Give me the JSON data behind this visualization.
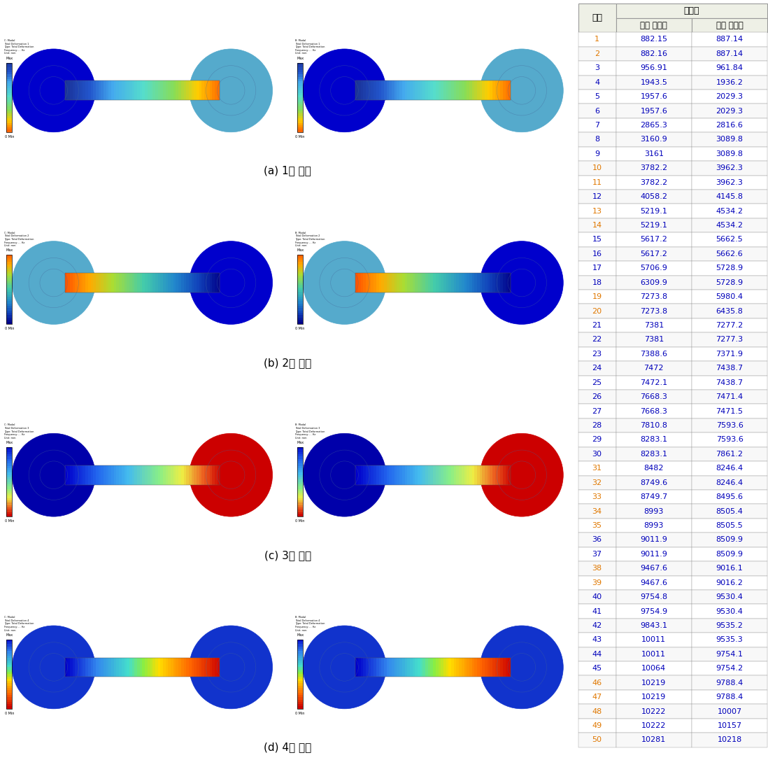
{
  "header_col0": "모드",
  "header_main": "주파수",
  "header_col1": "단일 확산부",
  "header_col2": "이중 확산부",
  "table_data": [
    [
      1,
      "882.15",
      "887.14"
    ],
    [
      2,
      "882.16",
      "887.14"
    ],
    [
      3,
      "956.91",
      "961.84"
    ],
    [
      4,
      "1943.5",
      "1936.2"
    ],
    [
      5,
      "1957.6",
      "2029.3"
    ],
    [
      6,
      "1957.6",
      "2029.3"
    ],
    [
      7,
      "2865.3",
      "2816.6"
    ],
    [
      8,
      "3160.9",
      "3089.8"
    ],
    [
      9,
      "3161",
      "3089.8"
    ],
    [
      10,
      "3782.2",
      "3962.3"
    ],
    [
      11,
      "3782.2",
      "3962.3"
    ],
    [
      12,
      "4058.2",
      "4145.8"
    ],
    [
      13,
      "5219.1",
      "4534.2"
    ],
    [
      14,
      "5219.1",
      "4534.2"
    ],
    [
      15,
      "5617.2",
      "5662.5"
    ],
    [
      16,
      "5617.2",
      "5662.6"
    ],
    [
      17,
      "5706.9",
      "5728.9"
    ],
    [
      18,
      "6309.9",
      "5728.9"
    ],
    [
      19,
      "7273.8",
      "5980.4"
    ],
    [
      20,
      "7273.8",
      "6435.8"
    ],
    [
      21,
      "7381",
      "7277.2"
    ],
    [
      22,
      "7381",
      "7277.3"
    ],
    [
      23,
      "7388.6",
      "7371.9"
    ],
    [
      24,
      "7472",
      "7438.7"
    ],
    [
      25,
      "7472.1",
      "7438.7"
    ],
    [
      26,
      "7668.3",
      "7471.4"
    ],
    [
      27,
      "7668.3",
      "7471.5"
    ],
    [
      28,
      "7810.8",
      "7593.6"
    ],
    [
      29,
      "8283.1",
      "7593.6"
    ],
    [
      30,
      "8283.1",
      "7861.2"
    ],
    [
      31,
      "8482",
      "8246.4"
    ],
    [
      32,
      "8749.6",
      "8246.4"
    ],
    [
      33,
      "8749.7",
      "8495.6"
    ],
    [
      34,
      "8993",
      "8505.4"
    ],
    [
      35,
      "8993",
      "8505.5"
    ],
    [
      36,
      "9011.9",
      "8509.9"
    ],
    [
      37,
      "9011.9",
      "8509.9"
    ],
    [
      38,
      "9467.6",
      "9016.1"
    ],
    [
      39,
      "9467.6",
      "9016.2"
    ],
    [
      40,
      "9754.8",
      "9530.4"
    ],
    [
      41,
      "9754.9",
      "9530.4"
    ],
    [
      42,
      "9843.1",
      "9535.2"
    ],
    [
      43,
      "10011",
      "9535.3"
    ],
    [
      44,
      "10011",
      "9754.1"
    ],
    [
      45,
      "10064",
      "9754.2"
    ],
    [
      46,
      "10219",
      "9788.4"
    ],
    [
      47,
      "10219",
      "9788.4"
    ],
    [
      48,
      "10222",
      "10007"
    ],
    [
      49,
      "10222",
      "10157"
    ],
    [
      50,
      "10281",
      "10218"
    ]
  ],
  "orange_rows": [
    1,
    2,
    10,
    11,
    13,
    14,
    19,
    20,
    31,
    32,
    33,
    34,
    35,
    38,
    39,
    46,
    47,
    48,
    49,
    50
  ],
  "captions": [
    "(a) 1차 모드",
    "(b) 2차 모드",
    "(c) 3차 모드",
    "(d) 4차 모드"
  ],
  "header_bg": "#eef0e6",
  "orange_color": "#e07800",
  "blue_color": "#0000bb",
  "border_color": "#999999",
  "fig_width": 10.98,
  "fig_height": 10.86
}
